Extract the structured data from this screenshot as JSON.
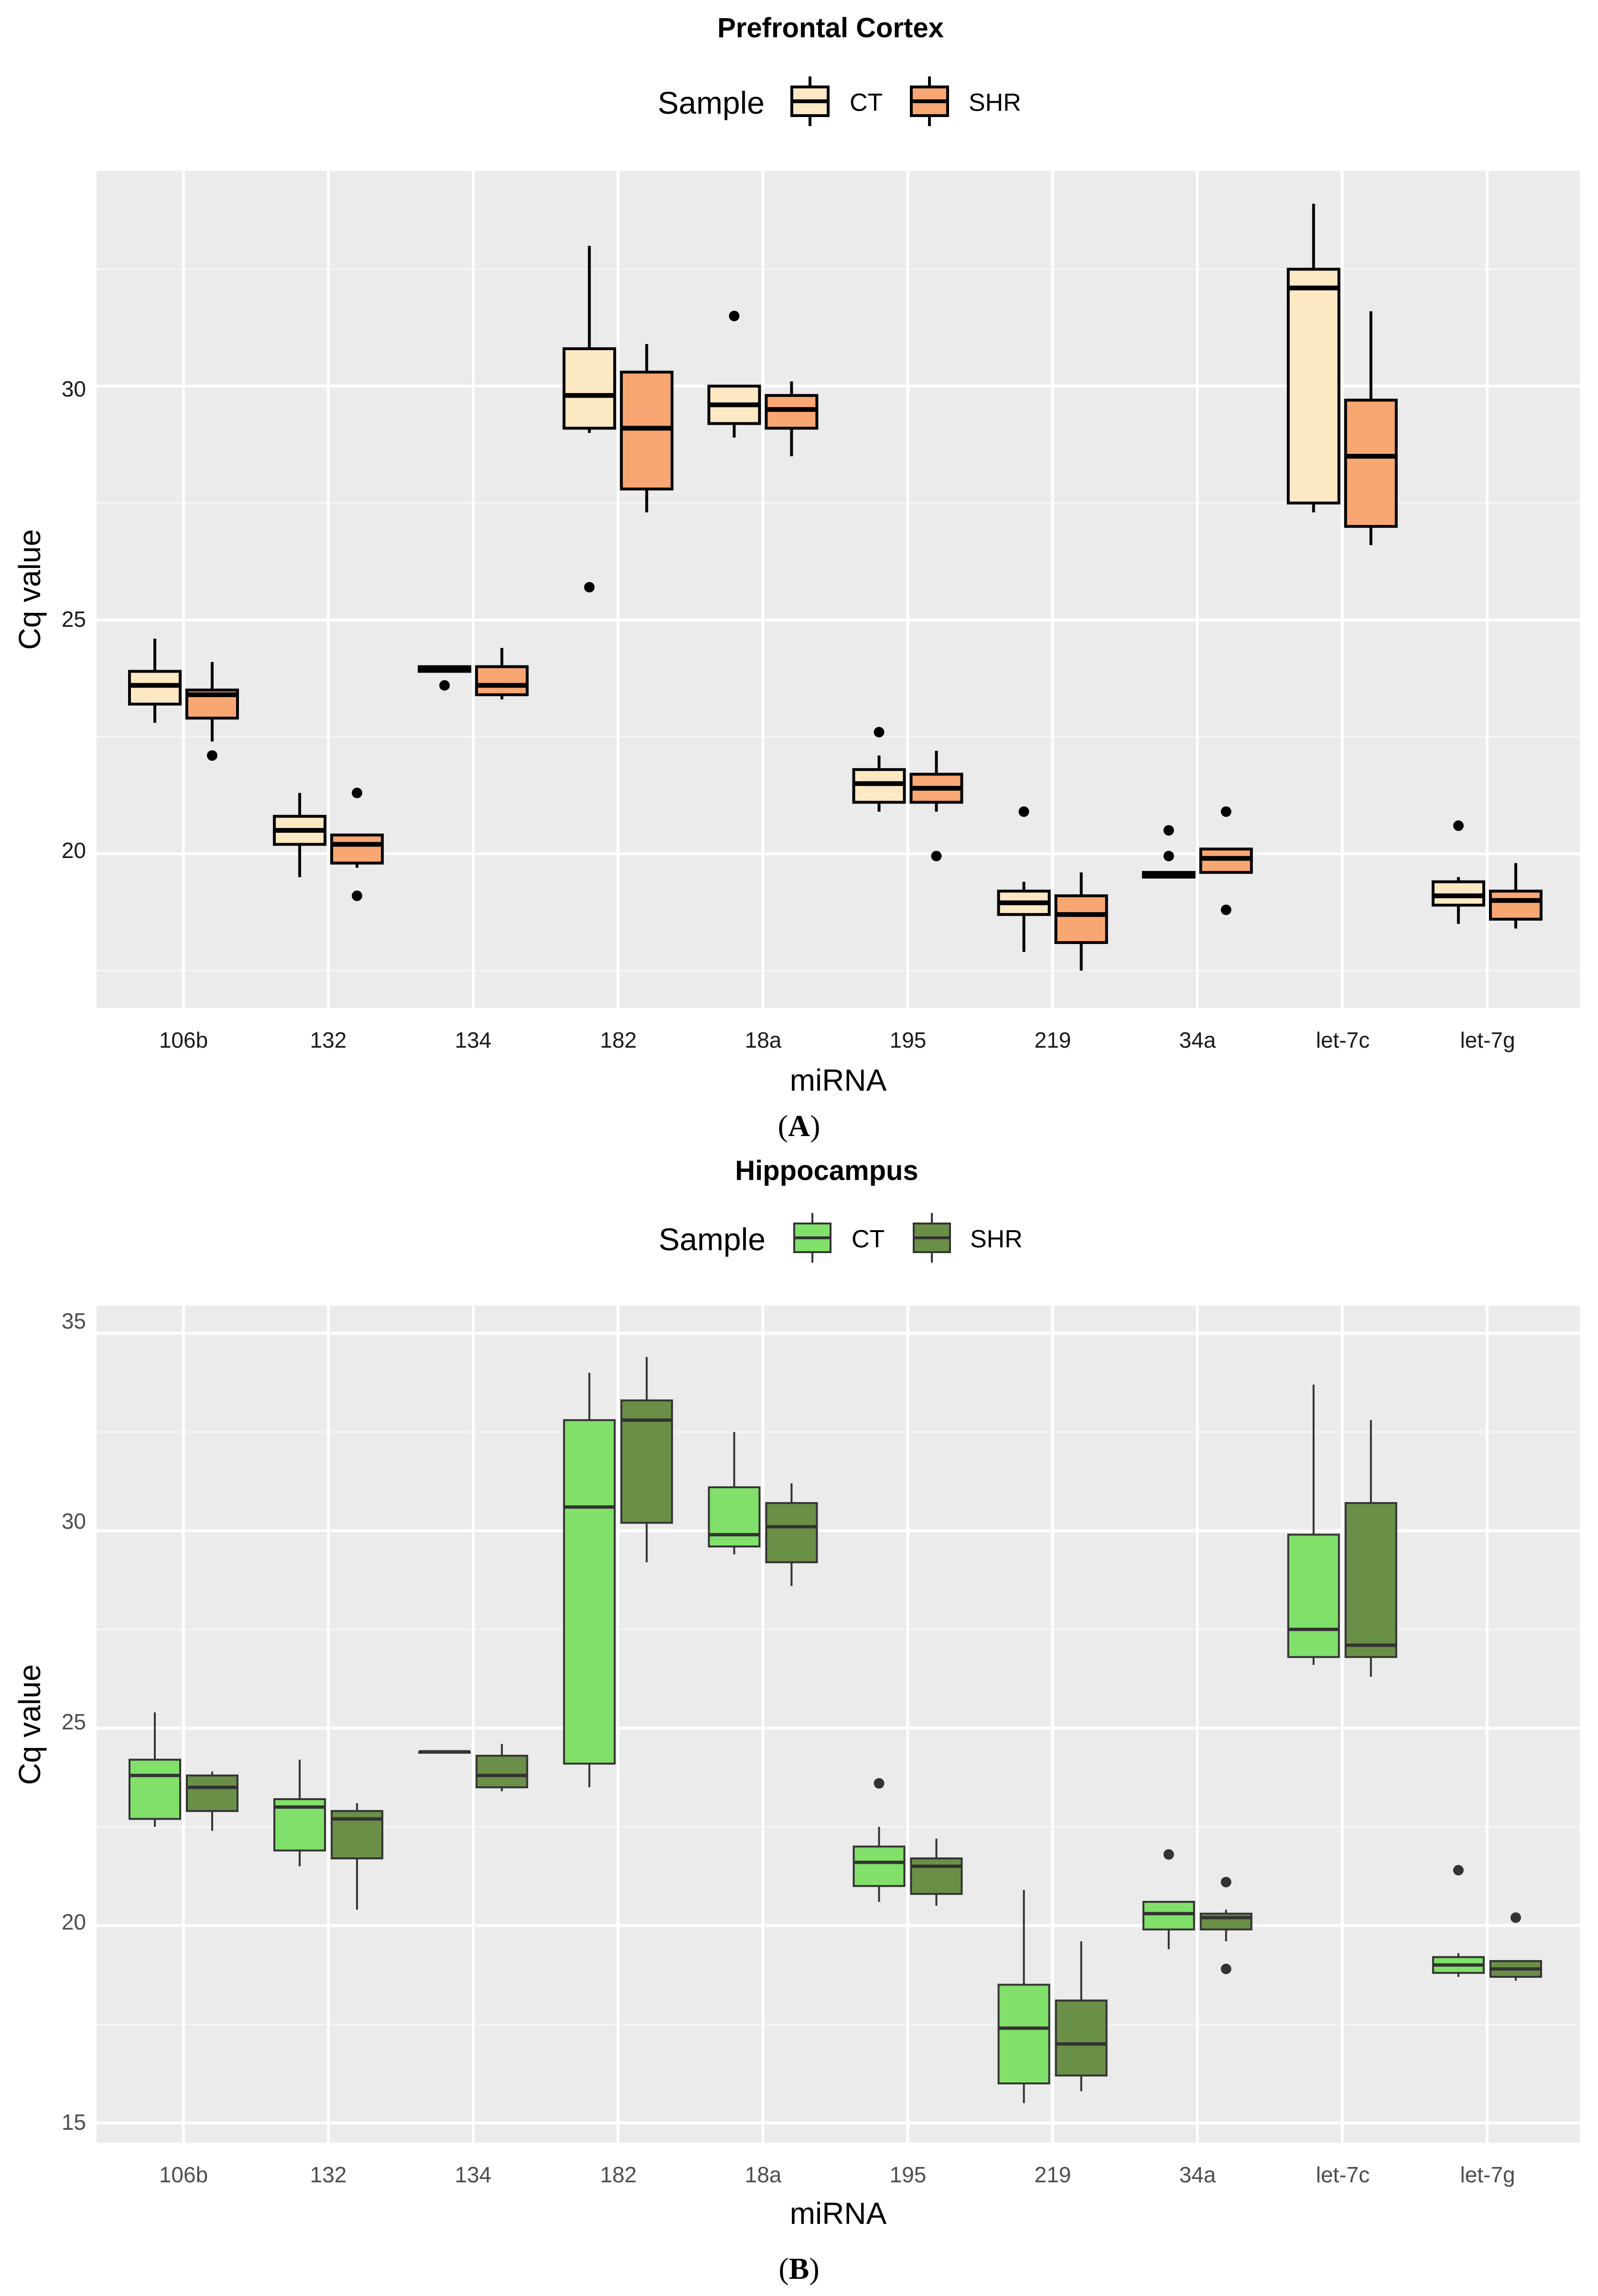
{
  "chart_data": [
    {
      "type": "boxplot",
      "panel_label": "(A)",
      "panel_letter": "A",
      "title": "Prefrontal Cortex",
      "xlabel": "miRNA",
      "ylabel": "Cq value",
      "legend": {
        "title": "Sample",
        "position": "top",
        "entries": [
          "CT",
          "SHR"
        ]
      },
      "colors": {
        "CT": "#fde8c4",
        "SHR": "#f9a772",
        "outline": "#000000"
      },
      "categories": [
        "106b",
        "132",
        "134",
        "182",
        "18a",
        "195",
        "219",
        "34a",
        "let-7c",
        "let-7g"
      ],
      "yticks": [
        20,
        25,
        30
      ],
      "tick_labels": [
        "20",
        "25",
        "30"
      ],
      "ylim": [
        16.7,
        34.6
      ],
      "series": [
        {
          "name": "CT",
          "boxes": [
            {
              "min": 22.8,
              "q1": 23.2,
              "median": 23.6,
              "q3": 23.9,
              "max": 24.6,
              "outliers": []
            },
            {
              "min": 19.5,
              "q1": 20.2,
              "median": 20.5,
              "q3": 20.8,
              "max": 21.3,
              "outliers": []
            },
            {
              "min": 23.9,
              "q1": 23.9,
              "median": 23.95,
              "q3": 24.0,
              "max": 24.0,
              "outliers": [
                23.6
              ]
            },
            {
              "min": 29.0,
              "q1": 29.1,
              "median": 29.8,
              "q3": 30.8,
              "max": 33.0,
              "outliers": [
                25.7
              ]
            },
            {
              "min": 28.9,
              "q1": 29.2,
              "median": 29.6,
              "q3": 30.0,
              "max": 30.0,
              "outliers": [
                31.5
              ]
            },
            {
              "min": 20.9,
              "q1": 21.1,
              "median": 21.5,
              "q3": 21.8,
              "max": 22.1,
              "outliers": [
                22.6
              ]
            },
            {
              "min": 17.9,
              "q1": 18.7,
              "median": 18.95,
              "q3": 19.2,
              "max": 19.4,
              "outliers": [
                20.9
              ]
            },
            {
              "min": 19.5,
              "q1": 19.5,
              "median": 19.55,
              "q3": 19.6,
              "max": 19.6,
              "outliers": [
                19.95,
                20.5
              ]
            },
            {
              "min": 27.3,
              "q1": 27.5,
              "median": 32.1,
              "q3": 32.5,
              "max": 33.9,
              "outliers": []
            },
            {
              "min": 18.5,
              "q1": 18.9,
              "median": 19.1,
              "q3": 19.4,
              "max": 19.5,
              "outliers": [
                20.6
              ]
            }
          ]
        },
        {
          "name": "SHR",
          "boxes": [
            {
              "min": 22.4,
              "q1": 22.9,
              "median": 23.4,
              "q3": 23.5,
              "max": 24.1,
              "outliers": [
                22.1
              ]
            },
            {
              "min": 19.7,
              "q1": 19.8,
              "median": 20.2,
              "q3": 20.4,
              "max": 20.4,
              "outliers": [
                21.3,
                19.1
              ]
            },
            {
              "min": 23.3,
              "q1": 23.4,
              "median": 23.6,
              "q3": 24.0,
              "max": 24.4,
              "outliers": []
            },
            {
              "min": 27.3,
              "q1": 27.8,
              "median": 29.1,
              "q3": 30.3,
              "max": 30.9,
              "outliers": []
            },
            {
              "min": 28.5,
              "q1": 29.1,
              "median": 29.5,
              "q3": 29.8,
              "max": 30.1,
              "outliers": []
            },
            {
              "min": 20.9,
              "q1": 21.1,
              "median": 21.4,
              "q3": 21.7,
              "max": 22.2,
              "outliers": [
                19.95
              ]
            },
            {
              "min": 17.5,
              "q1": 18.1,
              "median": 18.7,
              "q3": 19.1,
              "max": 19.6,
              "outliers": []
            },
            {
              "min": 19.6,
              "q1": 19.6,
              "median": 19.9,
              "q3": 20.1,
              "max": 20.1,
              "outliers": [
                20.9,
                18.8
              ]
            },
            {
              "min": 26.6,
              "q1": 27.0,
              "median": 28.5,
              "q3": 29.7,
              "max": 31.6,
              "outliers": []
            },
            {
              "min": 18.4,
              "q1": 18.6,
              "median": 19.0,
              "q3": 19.2,
              "max": 19.8,
              "outliers": []
            }
          ]
        }
      ]
    },
    {
      "type": "boxplot",
      "panel_label": "(B)",
      "panel_letter": "B",
      "title": "Hippocampus",
      "xlabel": "miRNA",
      "ylabel": "Cq value",
      "legend": {
        "title": "Sample",
        "position": "top",
        "entries": [
          "CT",
          "SHR"
        ]
      },
      "colors": {
        "CT": "#80e06a",
        "SHR": "#6a8f47",
        "outline": "#333333"
      },
      "categories": [
        "106b",
        "132",
        "134",
        "182",
        "18a",
        "195",
        "219",
        "34a",
        "let-7c",
        "let-7g"
      ],
      "yticks": [
        15,
        20,
        25,
        30,
        35
      ],
      "tick_labels": [
        "15",
        "20",
        "25",
        "30",
        "35"
      ],
      "ylim": [
        14.5,
        35.7
      ],
      "series": [
        {
          "name": "CT",
          "boxes": [
            {
              "min": 22.5,
              "q1": 22.7,
              "median": 23.8,
              "q3": 24.2,
              "max": 25.4,
              "outliers": []
            },
            {
              "min": 21.5,
              "q1": 21.9,
              "median": 23.0,
              "q3": 23.2,
              "max": 24.2,
              "outliers": []
            },
            {
              "min": 24.4,
              "q1": 24.4,
              "median": 24.4,
              "q3": 24.4,
              "max": 24.4,
              "outliers": []
            },
            {
              "min": 23.5,
              "q1": 24.1,
              "median": 30.6,
              "q3": 32.8,
              "max": 34.0,
              "outliers": []
            },
            {
              "min": 29.4,
              "q1": 29.6,
              "median": 29.9,
              "q3": 31.1,
              "max": 32.5,
              "outliers": []
            },
            {
              "min": 20.6,
              "q1": 21.0,
              "median": 21.6,
              "q3": 22.0,
              "max": 22.5,
              "outliers": [
                23.6
              ]
            },
            {
              "min": 15.5,
              "q1": 16.0,
              "median": 17.4,
              "q3": 18.5,
              "max": 20.9,
              "outliers": []
            },
            {
              "min": 19.4,
              "q1": 19.9,
              "median": 20.3,
              "q3": 20.6,
              "max": 20.6,
              "outliers": [
                21.8
              ]
            },
            {
              "min": 26.6,
              "q1": 26.8,
              "median": 27.5,
              "q3": 29.9,
              "max": 33.7,
              "outliers": []
            },
            {
              "min": 18.7,
              "q1": 18.8,
              "median": 19.0,
              "q3": 19.2,
              "max": 19.3,
              "outliers": [
                21.4
              ]
            }
          ]
        },
        {
          "name": "SHR",
          "boxes": [
            {
              "min": 22.4,
              "q1": 22.9,
              "median": 23.5,
              "q3": 23.8,
              "max": 23.9,
              "outliers": []
            },
            {
              "min": 20.4,
              "q1": 21.7,
              "median": 22.7,
              "q3": 22.9,
              "max": 23.1,
              "outliers": []
            },
            {
              "min": 23.4,
              "q1": 23.5,
              "median": 23.8,
              "q3": 24.3,
              "max": 24.6,
              "outliers": []
            },
            {
              "min": 29.2,
              "q1": 30.2,
              "median": 32.8,
              "q3": 33.3,
              "max": 34.4,
              "outliers": []
            },
            {
              "min": 28.6,
              "q1": 29.2,
              "median": 30.1,
              "q3": 30.7,
              "max": 31.2,
              "outliers": []
            },
            {
              "min": 20.5,
              "q1": 20.8,
              "median": 21.5,
              "q3": 21.7,
              "max": 22.2,
              "outliers": []
            },
            {
              "min": 15.8,
              "q1": 16.2,
              "median": 17.0,
              "q3": 18.1,
              "max": 19.6,
              "outliers": []
            },
            {
              "min": 19.6,
              "q1": 19.9,
              "median": 20.2,
              "q3": 20.3,
              "max": 20.4,
              "outliers": [
                21.1,
                18.9
              ]
            },
            {
              "min": 26.3,
              "q1": 26.8,
              "median": 27.1,
              "q3": 30.7,
              "max": 32.8,
              "outliers": []
            },
            {
              "min": 18.6,
              "q1": 18.7,
              "median": 18.9,
              "q3": 19.1,
              "max": 19.1,
              "outliers": [
                20.2
              ]
            }
          ]
        }
      ]
    }
  ]
}
